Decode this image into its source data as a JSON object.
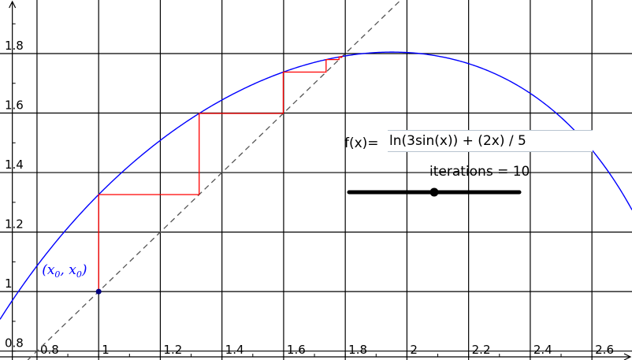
{
  "chart_data": {
    "type": "line",
    "title": "",
    "xlabel": "",
    "ylabel": "",
    "xlim": [
      0.68,
      2.73
    ],
    "ylim": [
      0.77,
      1.98
    ],
    "x_ticks": [
      0.8,
      1,
      1.2,
      1.4,
      1.6,
      1.8,
      2,
      2.2,
      2.4,
      2.6
    ],
    "x_tick_labels": [
      "0.8",
      "1",
      "1.2",
      "1.4",
      "1.6",
      "1.8",
      "2",
      "2.2",
      "2.4",
      "2.6"
    ],
    "y_ticks": [
      0.8,
      1,
      1.2,
      1.4,
      1.6,
      1.8
    ],
    "y_tick_labels": [
      "0.8",
      "1",
      "1.2",
      "1.4",
      "1.6",
      "1.8"
    ],
    "grid": true,
    "series": [
      {
        "kind": "function",
        "expression": "ln(3sin(x)) + (2x) / 5",
        "color": "#0000ff"
      },
      {
        "kind": "identity-line",
        "expression": "y = x",
        "style": "dashed",
        "color": "#555555"
      },
      {
        "kind": "cobweb",
        "color": "#ff0000",
        "x0": 1,
        "iterations": 10
      }
    ],
    "start_point": {
      "x": 1,
      "y": 1,
      "label": "(x0, x0)",
      "color": "#000080"
    }
  },
  "controls": {
    "function_label": "f(x)=",
    "function_value": "ln(3sin(x)) + (2x) / 5",
    "iterations_label": "iterations = 10",
    "iterations_value": 10,
    "iterations_min": 0,
    "iterations_max": 20
  }
}
